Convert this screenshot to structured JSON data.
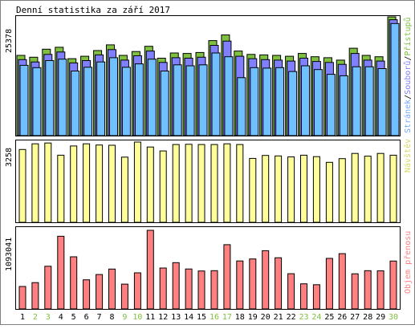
{
  "chart_data": {
    "title": "Denní statistika za září 2017",
    "type": "bar",
    "categories": [
      "1",
      "2",
      "3",
      "4",
      "5",
      "6",
      "7",
      "8",
      "9",
      "10",
      "11",
      "12",
      "13",
      "14",
      "15",
      "16",
      "17",
      "18",
      "19",
      "20",
      "21",
      "22",
      "23",
      "24",
      "25",
      "26",
      "27",
      "28",
      "29",
      "30"
    ],
    "weekend_days": [
      "2",
      "3",
      "9",
      "10",
      "16",
      "17",
      "23",
      "24",
      "30"
    ],
    "panels": [
      {
        "name": "hits",
        "max_label": "25378",
        "legend": [
          "Stránek",
          "Souborů",
          "Přístupů"
        ],
        "series": [
          {
            "name": "Přístupů",
            "color": "#80c040",
            "values": [
              16900,
              16500,
              18200,
              18600,
              16200,
              16700,
              17900,
              19100,
              16900,
              17700,
              18800,
              16300,
              17400,
              17300,
              17500,
              20000,
              21200,
              17800,
              17100,
              17000,
              16900,
              16700,
              17300,
              16600,
              16400,
              15900,
              18400,
              16900,
              16600,
              25000
            ]
          },
          {
            "name": "Souborů",
            "color": "#8080ff",
            "values": [
              16000,
              15500,
              17100,
              17600,
              15300,
              15800,
              17000,
              18100,
              15900,
              16800,
              17800,
              15400,
              16400,
              16300,
              16500,
              19000,
              19900,
              16700,
              16200,
              16000,
              15900,
              15700,
              16300,
              15600,
              15400,
              15000,
              17300,
              15900,
              15700,
              24400
            ]
          },
          {
            "name": "Stránek",
            "color": "#70c0ff",
            "values": [
              14800,
              14300,
              15800,
              16100,
              13600,
              14400,
              15500,
              16400,
              14400,
              15100,
              16100,
              13600,
              14900,
              14700,
              14900,
              17400,
              16600,
              12200,
              14300,
              14200,
              14300,
              13500,
              14700,
              13900,
              12900,
              12600,
              14500,
              14500,
              14100,
              23600
            ]
          }
        ]
      },
      {
        "name": "visits",
        "max_label": "3258",
        "legend": [
          "Návštěv"
        ],
        "series": [
          {
            "name": "Návštěv",
            "color": "#ffff99",
            "values": [
              2940,
              3170,
              3200,
              2710,
              3080,
              3170,
              3120,
              3110,
              2630,
              3240,
              3040,
              2880,
              3140,
              3150,
              3140,
              3140,
              3170,
              3140,
              2580,
              2700,
              2680,
              2640,
              2710,
              2650,
              2420,
              2570,
              2780,
              2670,
              2780,
              2710
            ]
          }
        ]
      },
      {
        "name": "kbytes",
        "max_label": "1093041",
        "legend": [
          "Objem přenosu"
        ],
        "series": [
          {
            "name": "Objem přenosu",
            "color": "#ff8080",
            "values": [
              312000,
              366000,
              593000,
              1010000,
              725000,
              405000,
              479000,
              554000,
              345000,
              502000,
              1093041,
              569000,
              643000,
              556000,
              528000,
              532000,
              893000,
              667000,
              695000,
              810000,
              712000,
              490000,
              349000,
              337000,
              703000,
              769000,
              488000,
              532000,
              530000,
              666000
            ]
          }
        ]
      }
    ]
  }
}
